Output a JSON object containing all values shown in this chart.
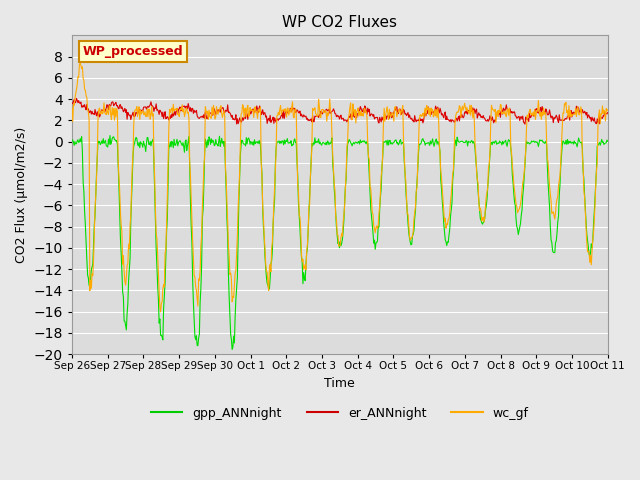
{
  "title": "WP CO2 Fluxes",
  "xlabel": "Time",
  "ylabel": "CO2 Flux (μmol/m2/s)",
  "ylim": [
    -20,
    10
  ],
  "yticks": [
    -20,
    -18,
    -16,
    -14,
    -12,
    -10,
    -8,
    -6,
    -4,
    -2,
    0,
    2,
    4,
    6,
    8
  ],
  "background_color": "#e8e8e8",
  "plot_bg_color": "#dcdcdc",
  "grid_color": "#ffffff",
  "annotation_text": "WP_processed",
  "annotation_color": "#cc0000",
  "annotation_bg": "#ffffcc",
  "annotation_border": "#cc8800",
  "legend_entries": [
    "gpp_ANNnight",
    "er_ANNnight",
    "wc_gf"
  ],
  "legend_colors": [
    "#00cc00",
    "#cc0000",
    "#ffaa00"
  ],
  "line_colors": {
    "gpp": "#00dd00",
    "er": "#dd0000",
    "wc": "#ffaa00"
  },
  "x_tick_labels": [
    "Sep 26",
    "Sep 27",
    "Sep 28",
    "Sep 29",
    "Sep 30",
    "Oct 1",
    "Oct 2",
    "Oct 3",
    "Oct 4",
    "Oct 5",
    "Oct 6",
    "Oct 7",
    "Oct 8",
    "Oct 9",
    "Oct 10",
    "Oct 11"
  ],
  "num_days": 15,
  "points_per_day": 48
}
